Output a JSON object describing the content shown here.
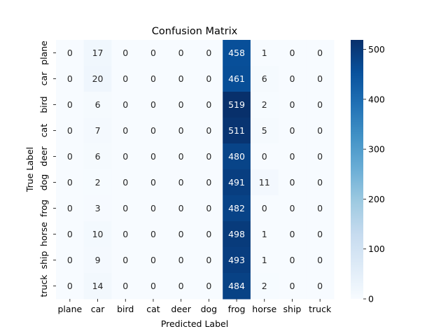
{
  "chart_data": {
    "type": "heatmap",
    "title": "Confusion Matrix",
    "xlabel": "Predicted Label",
    "ylabel": "True Label",
    "x_categories": [
      "plane",
      "car",
      "bird",
      "cat",
      "deer",
      "dog",
      "frog",
      "horse",
      "ship",
      "truck"
    ],
    "y_categories": [
      "plane",
      "car",
      "bird",
      "cat",
      "deer",
      "dog",
      "frog",
      "horse",
      "ship",
      "truck"
    ],
    "values": [
      [
        0,
        17,
        0,
        0,
        0,
        0,
        458,
        1,
        0,
        0
      ],
      [
        0,
        20,
        0,
        0,
        0,
        0,
        461,
        6,
        0,
        0
      ],
      [
        0,
        6,
        0,
        0,
        0,
        0,
        519,
        2,
        0,
        0
      ],
      [
        0,
        7,
        0,
        0,
        0,
        0,
        511,
        5,
        0,
        0
      ],
      [
        0,
        6,
        0,
        0,
        0,
        0,
        480,
        0,
        0,
        0
      ],
      [
        0,
        2,
        0,
        0,
        0,
        0,
        491,
        11,
        0,
        0
      ],
      [
        0,
        3,
        0,
        0,
        0,
        0,
        482,
        0,
        0,
        0
      ],
      [
        0,
        10,
        0,
        0,
        0,
        0,
        498,
        1,
        0,
        0
      ],
      [
        0,
        9,
        0,
        0,
        0,
        0,
        493,
        1,
        0,
        0
      ],
      [
        0,
        14,
        0,
        0,
        0,
        0,
        484,
        2,
        0,
        0
      ]
    ],
    "colormap": "Blues",
    "color_range": [
      0,
      519
    ],
    "colorbar_ticks": [
      0,
      100,
      200,
      300,
      400,
      500
    ],
    "colorbar_tick_labels": [
      "0",
      "100",
      "200",
      "300",
      "400",
      "500"
    ],
    "annotations": true,
    "grid": false,
    "colorbar_placement": "right"
  }
}
